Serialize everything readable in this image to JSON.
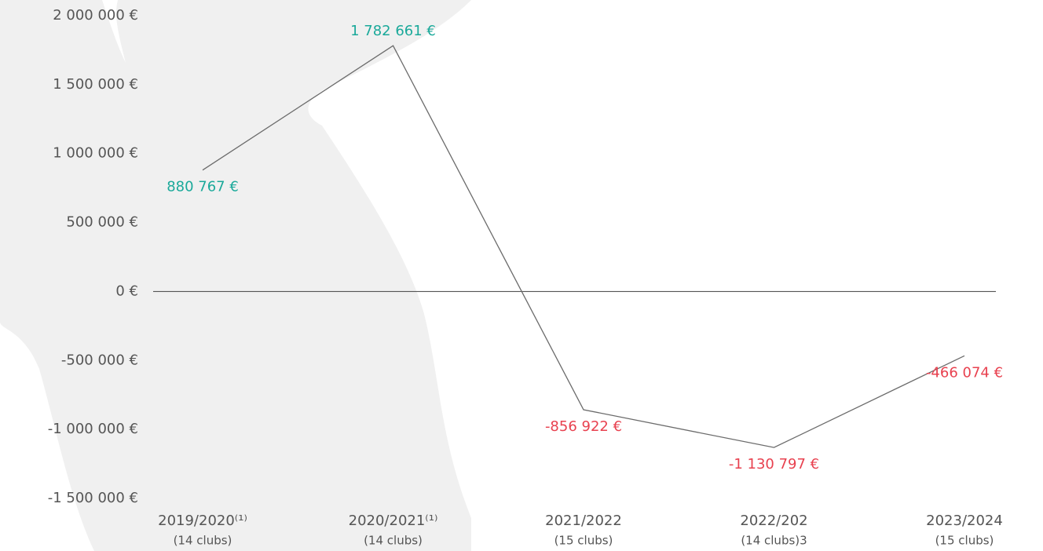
{
  "chart_data": {
    "type": "line",
    "categories": [
      "2019/2020⁽¹⁾",
      "2020/2021⁽¹⁾",
      "2021/2022",
      "2022/202",
      "2023/2024"
    ],
    "sublabels": [
      "(14 clubs)",
      "(14 clubs)",
      "(15 clubs)",
      "(14 clubs)3",
      "(15 clubs)"
    ],
    "values": [
      880767,
      1782661,
      -856922,
      -1130797,
      -466074
    ],
    "value_labels": [
      "880 767 €",
      "1 782 661 €",
      "-856 922 €",
      "-1 130 797 €",
      "-466 074 €"
    ],
    "line_color": "#6b6b6b",
    "positive_color": "#1aa99a",
    "negative_color": "#e8414f",
    "ylim": [
      -1500000,
      2000000
    ],
    "yticks": [
      {
        "value": -1500000,
        "label": "-1 500 000 €"
      },
      {
        "value": -1000000,
        "label": "-1 000 000 €"
      },
      {
        "value": -500000,
        "label": "-500 000 €"
      },
      {
        "value": 0,
        "label": "0 €"
      },
      {
        "value": 500000,
        "label": "500 000 €"
      },
      {
        "value": 1000000,
        "label": "1 000 000 €"
      },
      {
        "value": 1500000,
        "label": "1 500 000 €"
      },
      {
        "value": 2000000,
        "label": "2 000 000 €"
      }
    ]
  }
}
